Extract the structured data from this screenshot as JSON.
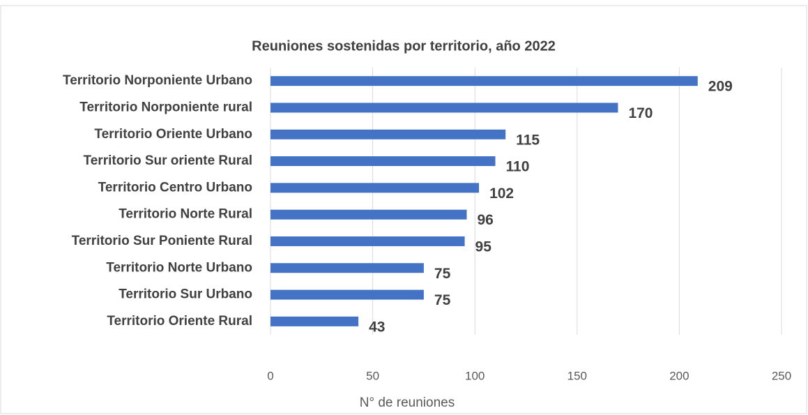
{
  "chart_data": {
    "type": "bar",
    "orientation": "horizontal",
    "title": "Reuniones sostenidas por territorio, año 2022",
    "x_label": "N° de reuniones",
    "categories": [
      "Territorio Norponiente Urbano",
      "Territorio Norponiente rural",
      "Territorio Oriente Urbano",
      "Territorio Sur oriente Rural",
      "Territorio Centro Urbano",
      "Territorio Norte Rural",
      "Territorio Sur Poniente Rural",
      "Territorio Norte Urbano",
      "Territorio Sur Urbano",
      "Territorio Oriente Rural"
    ],
    "values": [
      209,
      170,
      115,
      110,
      102,
      96,
      95,
      75,
      75,
      43
    ],
    "color": "#4472c4",
    "xlim": [
      0,
      250
    ],
    "xticks": [
      0,
      50,
      100,
      150,
      200,
      250
    ],
    "grid": true
  }
}
